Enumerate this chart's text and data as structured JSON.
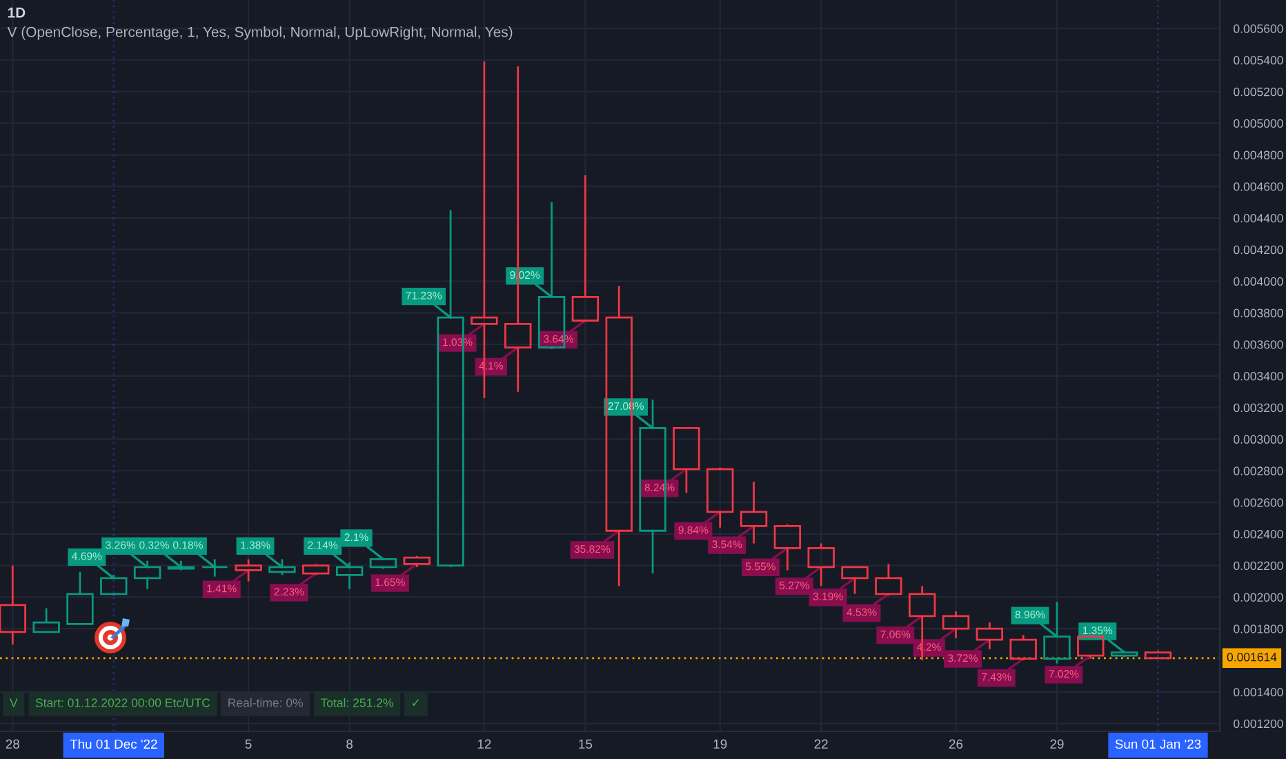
{
  "chart_data": {
    "type": "candlestick",
    "title": "1D",
    "subtitle": "V (OpenClose, Percentage, 1, Yes, Symbol, Normal, UpLowRight, Normal, Yes)",
    "x": [
      "2022-11-28",
      "2022-11-29",
      "2022-11-30",
      "2022-12-01",
      "2022-12-02",
      "2022-12-03",
      "2022-12-04",
      "2022-12-05",
      "2022-12-06",
      "2022-12-07",
      "2022-12-08",
      "2022-12-09",
      "2022-12-10",
      "2022-12-11",
      "2022-12-12",
      "2022-12-13",
      "2022-12-14",
      "2022-12-15",
      "2022-12-16",
      "2022-12-17",
      "2022-12-18",
      "2022-12-19",
      "2022-12-20",
      "2022-12-21",
      "2022-12-22",
      "2022-12-23",
      "2022-12-24",
      "2022-12-25",
      "2022-12-26",
      "2022-12-27",
      "2022-12-28",
      "2022-12-29",
      "2022-12-30",
      "2022-12-31",
      "2023-01-01"
    ],
    "ohlc": [
      [
        0.00195,
        0.0022,
        0.0017,
        0.00178
      ],
      [
        0.00178,
        0.00193,
        0.00178,
        0.00184
      ],
      [
        0.00183,
        0.00216,
        0.00183,
        0.00202
      ],
      [
        0.00202,
        0.00214,
        0.00201,
        0.00212
      ],
      [
        0.00212,
        0.00223,
        0.00205,
        0.00219
      ],
      [
        0.00218,
        0.00223,
        0.00217,
        0.00219
      ],
      [
        0.00219,
        0.00224,
        0.00213,
        0.00219
      ],
      [
        0.0022,
        0.00224,
        0.0021,
        0.00217
      ],
      [
        0.00216,
        0.00224,
        0.00214,
        0.00219
      ],
      [
        0.0022,
        0.00221,
        0.00214,
        0.00215
      ],
      [
        0.00214,
        0.00222,
        0.00205,
        0.00219
      ],
      [
        0.00219,
        0.00225,
        0.00218,
        0.00224
      ],
      [
        0.00225,
        0.00226,
        0.00219,
        0.00221
      ],
      [
        0.0022,
        0.00445,
        0.00219,
        0.00377
      ],
      [
        0.00377,
        0.00539,
        0.00326,
        0.00373
      ],
      [
        0.00373,
        0.00536,
        0.0033,
        0.00358
      ],
      [
        0.00358,
        0.0045,
        0.00357,
        0.0039
      ],
      [
        0.0039,
        0.00467,
        0.00375,
        0.00375
      ],
      [
        0.00377,
        0.00397,
        0.00207,
        0.00242
      ],
      [
        0.00242,
        0.00325,
        0.00215,
        0.00307
      ],
      [
        0.00307,
        0.00307,
        0.00266,
        0.00281
      ],
      [
        0.00281,
        0.00282,
        0.00244,
        0.00254
      ],
      [
        0.00254,
        0.00273,
        0.00234,
        0.00245
      ],
      [
        0.00245,
        0.00246,
        0.00217,
        0.00231
      ],
      [
        0.00231,
        0.00234,
        0.00207,
        0.00219
      ],
      [
        0.00219,
        0.00219,
        0.00202,
        0.00212
      ],
      [
        0.00212,
        0.00221,
        0.00201,
        0.00202
      ],
      [
        0.00202,
        0.00207,
        0.0016,
        0.00188
      ],
      [
        0.00188,
        0.00191,
        0.00174,
        0.0018
      ],
      [
        0.0018,
        0.00184,
        0.00167,
        0.00173
      ],
      [
        0.00173,
        0.00176,
        0.0016,
        0.00161
      ],
      [
        0.00161,
        0.00197,
        0.00158,
        0.00175
      ],
      [
        0.00175,
        0.00176,
        0.00161,
        0.00163
      ],
      [
        0.00163,
        0.00166,
        0.00162,
        0.00165
      ],
      [
        0.00165,
        0.00166,
        0.00161,
        0.001614
      ]
    ],
    "colors": [
      "#f23645",
      "#089981",
      "#089981",
      "#089981",
      "#089981",
      "#089981",
      "#089981",
      "#f23645",
      "#089981",
      "#f23645",
      "#089981",
      "#089981",
      "#f23645",
      "#089981",
      "#f23645",
      "#f23645",
      "#089981",
      "#f23645",
      "#f23645",
      "#089981",
      "#f23645",
      "#f23645",
      "#f23645",
      "#f23645",
      "#f23645",
      "#f23645",
      "#f23645",
      "#f23645",
      "#f23645",
      "#f23645",
      "#f23645",
      "#089981",
      "#f23645",
      "#089981",
      "#f23645"
    ],
    "xlim": [
      "2022-11-27T15:00",
      "2023-01-02T20:00"
    ],
    "xticks": [
      {
        "value": "2022-11-28",
        "label": "28"
      },
      {
        "value": "2022-12-05",
        "label": "5"
      },
      {
        "value": "2022-12-08",
        "label": "8"
      },
      {
        "value": "2022-12-12",
        "label": "12"
      },
      {
        "value": "2022-12-15",
        "label": "15"
      },
      {
        "value": "2022-12-19",
        "label": "19"
      },
      {
        "value": "2022-12-22",
        "label": "22"
      },
      {
        "value": "2022-12-26",
        "label": "26"
      },
      {
        "value": "2022-12-29",
        "label": "29"
      }
    ],
    "ylim": [
      0.00115,
      0.00578
    ],
    "yticks": [
      {
        "value": 0.0012,
        "label": "0.001200"
      },
      {
        "value": 0.0014,
        "label": "0.001400"
      },
      {
        "value": 0.0018,
        "label": "0.001800"
      },
      {
        "value": 0.002,
        "label": "0.002000"
      },
      {
        "value": 0.0022,
        "label": "0.002200"
      },
      {
        "value": 0.0024,
        "label": "0.002400"
      },
      {
        "value": 0.0026,
        "label": "0.002600"
      },
      {
        "value": 0.0028,
        "label": "0.002800"
      },
      {
        "value": 0.003,
        "label": "0.003000"
      },
      {
        "value": 0.0032,
        "label": "0.003200"
      },
      {
        "value": 0.0034,
        "label": "0.003400"
      },
      {
        "value": 0.0036,
        "label": "0.003600"
      },
      {
        "value": 0.0038,
        "label": "0.003800"
      },
      {
        "value": 0.004,
        "label": "0.004000"
      },
      {
        "value": 0.0042,
        "label": "0.004200"
      },
      {
        "value": 0.0044,
        "label": "0.004400"
      },
      {
        "value": 0.0046,
        "label": "0.004600"
      },
      {
        "value": 0.0048,
        "label": "0.004800"
      },
      {
        "value": 0.005,
        "label": "0.005000"
      },
      {
        "value": 0.0052,
        "label": "0.005200"
      },
      {
        "value": 0.0054,
        "label": "0.005400"
      },
      {
        "value": 0.0056,
        "label": "0.005600"
      }
    ],
    "grid": true,
    "ref_lines": [
      {
        "axis": "x",
        "value": "2022-12-01",
        "label": "Thu 01 Dec '22",
        "color": "#2962ff",
        "line_style": "dotted"
      },
      {
        "axis": "x",
        "value": "2023-01-01",
        "label": "Sun 01 Jan '23",
        "color": "#2962ff",
        "line_style": "dotted"
      },
      {
        "axis": "y",
        "value": 0.001614,
        "label": "0.001614",
        "color": "#f7a600",
        "line_style": "dotted"
      }
    ],
    "annotations": [
      {
        "text": "4.69%",
        "x": "2022-12-01",
        "y": 0.00212
      },
      {
        "text": "3.26%",
        "x": "2022-12-02",
        "y": 0.00219
      },
      {
        "text": "0.32%",
        "x": "2022-12-03",
        "y": 0.00219
      },
      {
        "text": "0.18%",
        "x": "2022-12-04",
        "y": 0.00219
      },
      {
        "text": "1.41%",
        "x": "2022-12-05",
        "y": 0.00217
      },
      {
        "text": "1.38%",
        "x": "2022-12-06",
        "y": 0.00219
      },
      {
        "text": "2.23%",
        "x": "2022-12-07",
        "y": 0.00215
      },
      {
        "text": "2.14%",
        "x": "2022-12-08",
        "y": 0.00219
      },
      {
        "text": "2.1%",
        "x": "2022-12-09",
        "y": 0.00224
      },
      {
        "text": "1.65%",
        "x": "2022-12-10",
        "y": 0.00221
      },
      {
        "text": "71.23%",
        "x": "2022-12-11",
        "y": 0.00377
      },
      {
        "text": "1.03%",
        "x": "2022-12-12",
        "y": 0.00373
      },
      {
        "text": "4.1%",
        "x": "2022-12-13",
        "y": 0.00358
      },
      {
        "text": "9.02%",
        "x": "2022-12-14",
        "y": 0.0039
      },
      {
        "text": "3.64%",
        "x": "2022-12-15",
        "y": 0.00375
      },
      {
        "text": "35.82%",
        "x": "2022-12-16",
        "y": 0.00242
      },
      {
        "text": "27.08%",
        "x": "2022-12-17",
        "y": 0.00307
      },
      {
        "text": "8.24%",
        "x": "2022-12-18",
        "y": 0.00281
      },
      {
        "text": "9.84%",
        "x": "2022-12-19",
        "y": 0.00254
      },
      {
        "text": "3.54%",
        "x": "2022-12-20",
        "y": 0.00245
      },
      {
        "text": "5.55%",
        "x": "2022-12-21",
        "y": 0.00231
      },
      {
        "text": "5.27%",
        "x": "2022-12-22",
        "y": 0.00219
      },
      {
        "text": "3.19%",
        "x": "2022-12-23",
        "y": 0.00212
      },
      {
        "text": "4.53%",
        "x": "2022-12-24",
        "y": 0.00202
      },
      {
        "text": "7.06%",
        "x": "2022-12-25",
        "y": 0.00188
      },
      {
        "text": "4.2%",
        "x": "2022-12-26",
        "y": 0.0018
      },
      {
        "text": "3.72%",
        "x": "2022-12-27",
        "y": 0.00173
      },
      {
        "text": "7.43%",
        "x": "2022-12-28",
        "y": 0.00161
      },
      {
        "text": "8.96%",
        "x": "2022-12-29",
        "y": 0.00175
      },
      {
        "text": "7.02%",
        "x": "2022-12-30",
        "y": 0.00163
      },
      {
        "text": "1.35%",
        "x": "2022-12-31",
        "y": 0.00165
      },
      "V",
      "Start: 01.12.2022 00:00 Etc/UTC",
      "Real-time: 0%",
      "Total: 251.2%",
      "✓"
    ]
  }
}
